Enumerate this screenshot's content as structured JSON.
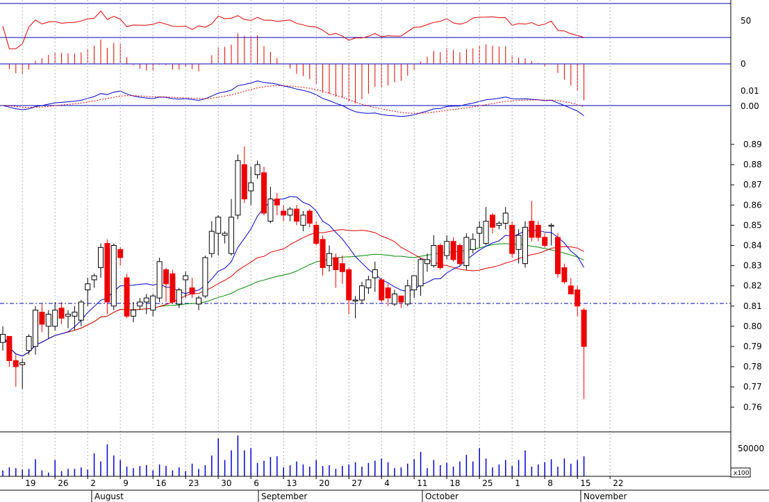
{
  "chart_data": {
    "type": "candlestick",
    "x_day_labels": [
      "19",
      "26",
      "2",
      "9",
      "16",
      "23",
      "30",
      "6",
      "13",
      "20",
      "27",
      "4",
      "11",
      "18",
      "25",
      "1",
      "8",
      "15",
      "22"
    ],
    "x_month_labels": [
      "August",
      "September",
      "October",
      "November"
    ],
    "price_ticks": [
      "0.89",
      "0.88",
      "0.87",
      "0.86",
      "0.85",
      "0.84",
      "0.83",
      "0.82",
      "0.81",
      "0.80",
      "0.79",
      "0.78",
      "0.77",
      "0.76"
    ],
    "price_range": [
      0.756,
      0.9
    ],
    "reference_line": 0.81,
    "volume_tick": "50000",
    "volume_unit": "x100",
    "rsi_tick": "50",
    "hist_tick": "0",
    "macd_ticks": [
      "0.01",
      "0.00"
    ],
    "candles": [
      [
        0.792,
        0.796,
        0.8,
        0.788
      ],
      [
        0.795,
        0.783,
        0.795,
        0.78
      ],
      [
        0.783,
        0.78,
        0.786,
        0.77
      ],
      [
        0.781,
        0.782,
        0.784,
        0.769
      ],
      [
        0.788,
        0.795,
        0.796,
        0.786
      ],
      [
        0.79,
        0.808,
        0.81,
        0.786
      ],
      [
        0.807,
        0.801,
        0.811,
        0.797
      ],
      [
        0.8,
        0.806,
        0.808,
        0.794
      ],
      [
        0.8,
        0.808,
        0.812,
        0.798
      ],
      [
        0.809,
        0.804,
        0.812,
        0.801
      ],
      [
        0.805,
        0.806,
        0.808,
        0.799
      ],
      [
        0.805,
        0.807,
        0.81,
        0.798
      ],
      [
        0.803,
        0.812,
        0.813,
        0.8
      ],
      [
        0.818,
        0.821,
        0.824,
        0.81
      ],
      [
        0.823,
        0.825,
        0.826,
        0.819
      ],
      [
        0.829,
        0.839,
        0.841,
        0.824
      ],
      [
        0.841,
        0.812,
        0.843,
        0.806
      ],
      [
        0.81,
        0.84,
        0.841,
        0.808
      ],
      [
        0.838,
        0.834,
        0.839,
        0.83
      ],
      [
        0.824,
        0.805,
        0.826,
        0.804
      ],
      [
        0.805,
        0.808,
        0.812,
        0.802
      ],
      [
        0.81,
        0.812,
        0.814,
        0.808
      ],
      [
        0.812,
        0.814,
        0.816,
        0.806
      ],
      [
        0.808,
        0.815,
        0.816,
        0.805
      ],
      [
        0.814,
        0.832,
        0.834,
        0.812
      ],
      [
        0.828,
        0.821,
        0.829,
        0.812
      ],
      [
        0.826,
        0.812,
        0.828,
        0.811
      ],
      [
        0.811,
        0.818,
        0.819,
        0.809
      ],
      [
        0.823,
        0.825,
        0.827,
        0.814
      ],
      [
        0.819,
        0.816,
        0.824,
        0.814
      ],
      [
        0.811,
        0.814,
        0.815,
        0.808
      ],
      [
        0.815,
        0.834,
        0.835,
        0.814
      ],
      [
        0.836,
        0.847,
        0.852,
        0.834
      ],
      [
        0.846,
        0.854,
        0.855,
        0.835
      ],
      [
        0.845,
        0.846,
        0.847,
        0.841
      ],
      [
        0.836,
        0.854,
        0.863,
        0.835
      ],
      [
        0.855,
        0.882,
        0.885,
        0.853
      ],
      [
        0.88,
        0.863,
        0.889,
        0.861
      ],
      [
        0.867,
        0.871,
        0.879,
        0.86
      ],
      [
        0.875,
        0.88,
        0.882,
        0.873
      ],
      [
        0.876,
        0.856,
        0.879,
        0.855
      ],
      [
        0.852,
        0.863,
        0.869,
        0.851
      ],
      [
        0.863,
        0.86,
        0.866,
        0.855
      ],
      [
        0.857,
        0.855,
        0.86,
        0.852
      ],
      [
        0.855,
        0.858,
        0.859,
        0.852
      ],
      [
        0.858,
        0.852,
        0.86,
        0.85
      ],
      [
        0.85,
        0.855,
        0.857,
        0.847
      ],
      [
        0.857,
        0.851,
        0.858,
        0.849
      ],
      [
        0.85,
        0.841,
        0.852,
        0.84
      ],
      [
        0.843,
        0.829,
        0.845,
        0.825
      ],
      [
        0.83,
        0.836,
        0.84,
        0.827
      ],
      [
        0.834,
        0.828,
        0.836,
        0.819
      ],
      [
        0.831,
        0.827,
        0.835,
        0.821
      ],
      [
        0.828,
        0.813,
        0.829,
        0.806
      ],
      [
        0.813,
        0.813,
        0.815,
        0.804
      ],
      [
        0.813,
        0.82,
        0.822,
        0.811
      ],
      [
        0.819,
        0.823,
        0.825,
        0.816
      ],
      [
        0.824,
        0.828,
        0.832,
        0.817
      ],
      [
        0.823,
        0.813,
        0.824,
        0.812
      ],
      [
        0.819,
        0.814,
        0.821,
        0.81
      ],
      [
        0.811,
        0.816,
        0.818,
        0.81
      ],
      [
        0.815,
        0.812,
        0.815,
        0.809
      ],
      [
        0.811,
        0.82,
        0.823,
        0.81
      ],
      [
        0.818,
        0.825,
        0.825,
        0.814
      ],
      [
        0.82,
        0.833,
        0.834,
        0.815
      ],
      [
        0.831,
        0.833,
        0.836,
        0.827
      ],
      [
        0.83,
        0.84,
        0.845,
        0.829
      ],
      [
        0.84,
        0.829,
        0.841,
        0.828
      ],
      [
        0.835,
        0.842,
        0.845,
        0.833
      ],
      [
        0.842,
        0.833,
        0.844,
        0.832
      ],
      [
        0.84,
        0.831,
        0.841,
        0.83
      ],
      [
        0.83,
        0.844,
        0.846,
        0.828
      ],
      [
        0.838,
        0.843,
        0.846,
        0.836
      ],
      [
        0.846,
        0.849,
        0.852,
        0.839
      ],
      [
        0.841,
        0.852,
        0.859,
        0.84
      ],
      [
        0.855,
        0.849,
        0.856,
        0.846
      ],
      [
        0.85,
        0.851,
        0.852,
        0.848
      ],
      [
        0.851,
        0.856,
        0.859,
        0.848
      ],
      [
        0.85,
        0.836,
        0.852,
        0.834
      ],
      [
        0.838,
        0.845,
        0.848,
        0.831
      ],
      [
        0.831,
        0.849,
        0.852,
        0.829
      ],
      [
        0.852,
        0.844,
        0.862,
        0.842
      ],
      [
        0.85,
        0.844,
        0.852,
        0.842
      ],
      [
        0.844,
        0.84,
        0.846,
        0.839
      ],
      [
        0.85,
        0.85,
        0.851,
        0.84
      ],
      [
        0.844,
        0.826,
        0.846,
        0.824
      ],
      [
        0.829,
        0.822,
        0.831,
        0.821
      ],
      [
        0.82,
        0.816,
        0.824,
        0.816
      ],
      [
        0.818,
        0.81,
        0.82,
        0.805
      ],
      [
        0.808,
        0.79,
        0.809,
        0.764
      ]
    ],
    "volumes": [
      8000,
      12000,
      11000,
      9000,
      10000,
      23000,
      8000,
      5000,
      22000,
      7000,
      10000,
      10000,
      12000,
      9000,
      31000,
      20000,
      43000,
      28000,
      22000,
      13000,
      11000,
      14000,
      15000,
      8000,
      16000,
      14000,
      8000,
      12000,
      7000,
      17000,
      10000,
      15000,
      28000,
      51000,
      22000,
      35000,
      55000,
      35000,
      38000,
      18000,
      21000,
      26000,
      27000,
      12000,
      15000,
      20000,
      16000,
      13000,
      22000,
      14000,
      15000,
      10000,
      14000,
      16000,
      19000,
      13000,
      18000,
      21000,
      24000,
      19000,
      11000,
      12000,
      17000,
      23000,
      33000,
      11000,
      22000,
      15000,
      18000,
      13000,
      20000,
      29000,
      20000,
      38000,
      24000,
      12000,
      16000,
      22000,
      14000,
      22000,
      35000,
      13000,
      16000,
      19000,
      23000,
      13000,
      24000,
      17000,
      22000,
      27000
    ]
  }
}
